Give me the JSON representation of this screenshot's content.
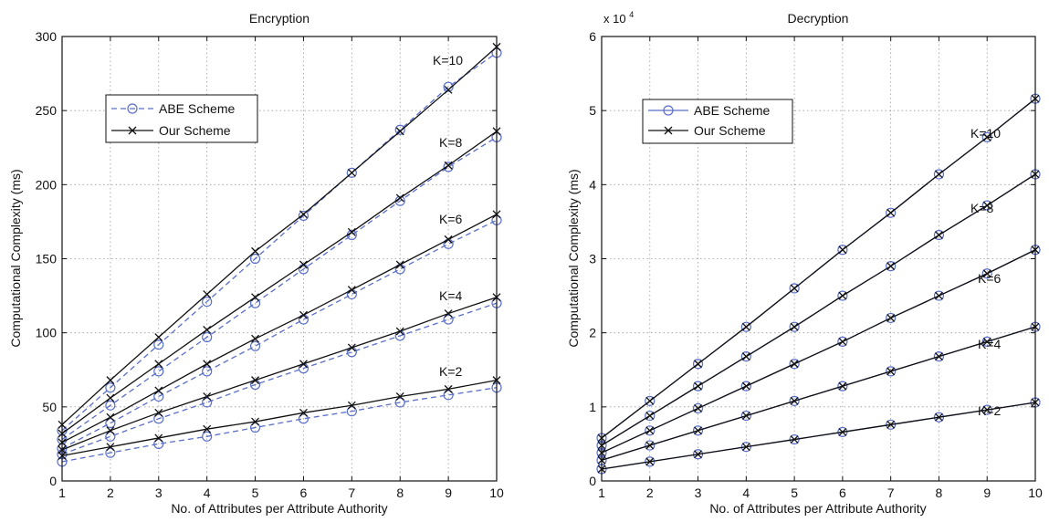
{
  "chart_data": [
    {
      "type": "line",
      "title": "Encryption",
      "xlabel": "No. of Attributes per Attribute Authority",
      "ylabel": "Computational Complexity (ms)",
      "x": [
        1,
        2,
        3,
        4,
        5,
        6,
        7,
        8,
        9,
        10
      ],
      "xlim": [
        1,
        10
      ],
      "ylim": [
        0,
        300
      ],
      "xticks": [
        "1",
        "2",
        "3",
        "4",
        "5",
        "6",
        "7",
        "8",
        "9",
        "10"
      ],
      "yticks": [
        "0",
        "50",
        "100",
        "150",
        "200",
        "250",
        "300"
      ],
      "grid": true,
      "legend_position": "upper-left",
      "legend": [
        {
          "label": "ABE Scheme",
          "style": "dashed-circle",
          "color": "#5a6fc8"
        },
        {
          "label": "Our Scheme",
          "style": "solid-x",
          "color": "#111111"
        }
      ],
      "curve_labels": [
        "K=10",
        "K=8",
        "K=6",
        "K=4",
        "K=2"
      ],
      "groups": [
        {
          "k": "K=10",
          "abe": [
            34,
            63,
            92,
            121,
            150,
            179,
            208,
            237,
            266,
            289
          ],
          "ours": [
            38,
            68,
            97,
            126,
            155,
            180,
            208,
            236,
            264,
            293
          ]
        },
        {
          "k": "K=8",
          "abe": [
            28,
            51,
            74,
            97,
            120,
            143,
            166,
            189,
            212,
            232
          ],
          "ours": [
            32,
            56,
            79,
            102,
            124,
            146,
            168,
            191,
            213,
            236
          ]
        },
        {
          "k": "K=6",
          "abe": [
            22,
            39,
            57,
            74,
            91,
            109,
            126,
            143,
            160,
            176
          ],
          "ours": [
            26,
            43,
            61,
            79,
            96,
            112,
            129,
            146,
            163,
            180
          ]
        },
        {
          "k": "K=4",
          "abe": [
            18,
            30,
            42,
            53,
            65,
            76,
            87,
            98,
            109,
            120
          ],
          "ours": [
            21,
            34,
            46,
            57,
            68,
            79,
            90,
            101,
            113,
            124
          ]
        },
        {
          "k": "K=2",
          "abe": [
            13,
            19,
            25,
            30,
            36,
            42,
            47,
            53,
            58,
            63
          ],
          "ours": [
            17,
            23,
            29,
            35,
            40,
            46,
            51,
            57,
            62,
            68
          ]
        }
      ]
    },
    {
      "type": "line",
      "title": "Decryption",
      "xlabel": "No. of Attributes per Attribute Authority",
      "ylabel": "Computational Complexity (ms)",
      "exponent_label": "x 10",
      "exponent_power": "4",
      "x": [
        1,
        2,
        3,
        4,
        5,
        6,
        7,
        8,
        9,
        10
      ],
      "xlim": [
        1,
        10
      ],
      "ylim": [
        0,
        6
      ],
      "xticks": [
        "1",
        "2",
        "3",
        "4",
        "5",
        "6",
        "7",
        "8",
        "9",
        "10"
      ],
      "yticks": [
        "0",
        "1",
        "2",
        "3",
        "4",
        "5",
        "6"
      ],
      "grid": true,
      "legend_position": "upper-left",
      "legend": [
        {
          "label": "ABE Scheme",
          "style": "solid-circle",
          "color": "#5a6fc8"
        },
        {
          "label": "Our Scheme",
          "style": "solid-x",
          "color": "#111111"
        }
      ],
      "curve_labels": [
        "K=10",
        "K=8",
        "K=6",
        "K=4",
        "K=2"
      ],
      "groups": [
        {
          "k": "K=10",
          "abe": [
            0.58,
            1.08,
            1.58,
            2.08,
            2.6,
            3.12,
            3.62,
            4.14,
            4.64,
            5.16
          ],
          "ours": [
            0.58,
            1.08,
            1.58,
            2.08,
            2.6,
            3.12,
            3.62,
            4.14,
            4.64,
            5.16
          ]
        },
        {
          "k": "K=8",
          "abe": [
            0.48,
            0.88,
            1.28,
            1.68,
            2.08,
            2.5,
            2.9,
            3.32,
            3.72,
            4.14
          ],
          "ours": [
            0.48,
            0.88,
            1.28,
            1.68,
            2.08,
            2.5,
            2.9,
            3.32,
            3.72,
            4.14
          ]
        },
        {
          "k": "K=6",
          "abe": [
            0.38,
            0.68,
            0.98,
            1.28,
            1.58,
            1.88,
            2.2,
            2.5,
            2.8,
            3.12
          ],
          "ours": [
            0.38,
            0.68,
            0.98,
            1.28,
            1.58,
            1.88,
            2.2,
            2.5,
            2.8,
            3.12
          ]
        },
        {
          "k": "K=4",
          "abe": [
            0.28,
            0.48,
            0.68,
            0.88,
            1.08,
            1.28,
            1.48,
            1.68,
            1.88,
            2.08
          ],
          "ours": [
            0.28,
            0.48,
            0.68,
            0.88,
            1.08,
            1.28,
            1.48,
            1.68,
            1.88,
            2.08
          ]
        },
        {
          "k": "K=2",
          "abe": [
            0.16,
            0.26,
            0.36,
            0.46,
            0.56,
            0.66,
            0.76,
            0.86,
            0.96,
            1.06
          ],
          "ours": [
            0.16,
            0.26,
            0.36,
            0.46,
            0.56,
            0.66,
            0.76,
            0.86,
            0.96,
            1.06
          ]
        }
      ]
    }
  ]
}
